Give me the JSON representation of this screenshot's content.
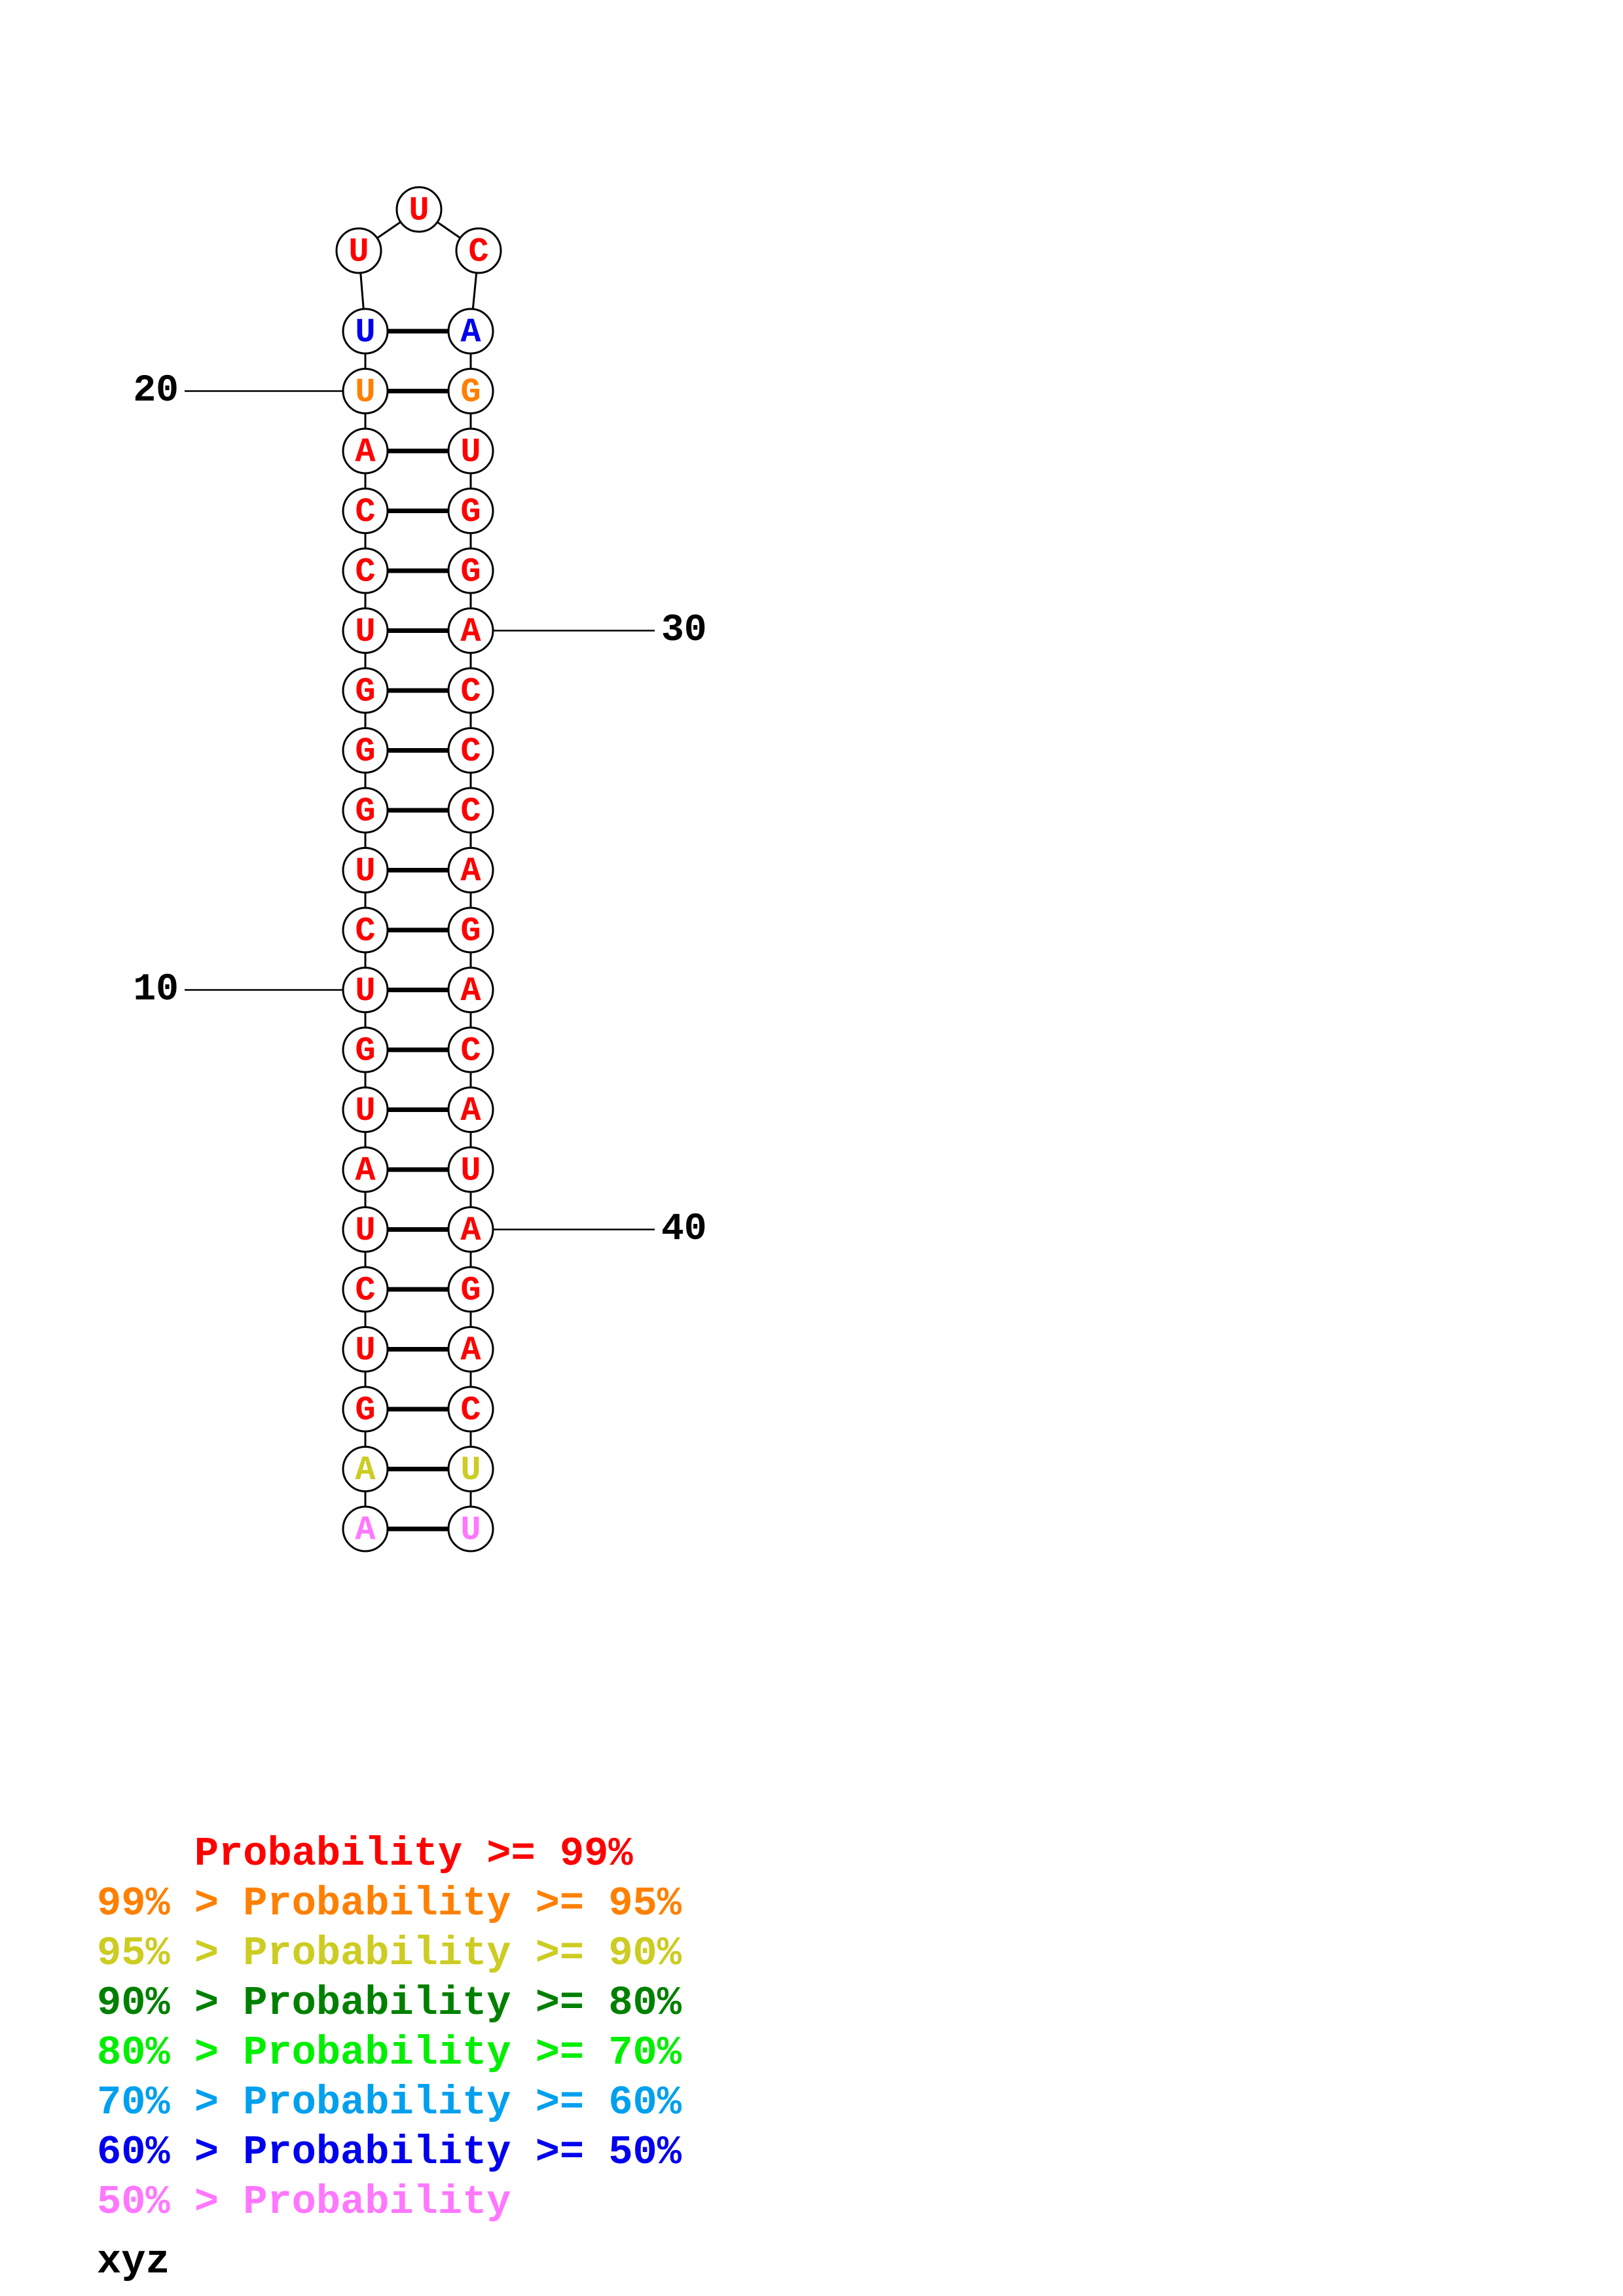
{
  "colors": {
    "p99": "#ff0000",
    "p95": "#ff8000",
    "p90": "#cccc22",
    "p80": "#008000",
    "p70": "#00ee00",
    "p60": "#00a0ee",
    "p50": "#0000ee",
    "plow": "#ff77ff"
  },
  "left_strand": [
    {
      "pos": 1,
      "base": "A",
      "color": "plow"
    },
    {
      "pos": 2,
      "base": "A",
      "color": "p90"
    },
    {
      "pos": 3,
      "base": "G",
      "color": "p99"
    },
    {
      "pos": 4,
      "base": "U",
      "color": "p99"
    },
    {
      "pos": 5,
      "base": "C",
      "color": "p99"
    },
    {
      "pos": 6,
      "base": "U",
      "color": "p99"
    },
    {
      "pos": 7,
      "base": "A",
      "color": "p99"
    },
    {
      "pos": 8,
      "base": "U",
      "color": "p99"
    },
    {
      "pos": 9,
      "base": "G",
      "color": "p99"
    },
    {
      "pos": 10,
      "base": "U",
      "color": "p99"
    },
    {
      "pos": 11,
      "base": "C",
      "color": "p99"
    },
    {
      "pos": 12,
      "base": "U",
      "color": "p99"
    },
    {
      "pos": 13,
      "base": "G",
      "color": "p99"
    },
    {
      "pos": 14,
      "base": "G",
      "color": "p99"
    },
    {
      "pos": 15,
      "base": "G",
      "color": "p99"
    },
    {
      "pos": 16,
      "base": "U",
      "color": "p99"
    },
    {
      "pos": 17,
      "base": "C",
      "color": "p99"
    },
    {
      "pos": 18,
      "base": "C",
      "color": "p99"
    },
    {
      "pos": 19,
      "base": "A",
      "color": "p99"
    },
    {
      "pos": 20,
      "base": "U",
      "color": "p95"
    },
    {
      "pos": 21,
      "base": "U",
      "color": "p50"
    }
  ],
  "loop": [
    {
      "pos": 22,
      "base": "U",
      "color": "p99"
    },
    {
      "pos": 23,
      "base": "U",
      "color": "p99"
    },
    {
      "pos": 24,
      "base": "C",
      "color": "p99"
    }
  ],
  "right_strand": [
    {
      "pos": 25,
      "base": "A",
      "color": "p50"
    },
    {
      "pos": 26,
      "base": "G",
      "color": "p95"
    },
    {
      "pos": 27,
      "base": "U",
      "color": "p99"
    },
    {
      "pos": 28,
      "base": "G",
      "color": "p99"
    },
    {
      "pos": 29,
      "base": "G",
      "color": "p99"
    },
    {
      "pos": 30,
      "base": "A",
      "color": "p99"
    },
    {
      "pos": 31,
      "base": "C",
      "color": "p99"
    },
    {
      "pos": 32,
      "base": "C",
      "color": "p99"
    },
    {
      "pos": 33,
      "base": "C",
      "color": "p99"
    },
    {
      "pos": 34,
      "base": "A",
      "color": "p99"
    },
    {
      "pos": 35,
      "base": "G",
      "color": "p99"
    },
    {
      "pos": 36,
      "base": "A",
      "color": "p99"
    },
    {
      "pos": 37,
      "base": "C",
      "color": "p99"
    },
    {
      "pos": 38,
      "base": "A",
      "color": "p99"
    },
    {
      "pos": 39,
      "base": "U",
      "color": "p99"
    },
    {
      "pos": 40,
      "base": "A",
      "color": "p99"
    },
    {
      "pos": 41,
      "base": "G",
      "color": "p99"
    },
    {
      "pos": 42,
      "base": "A",
      "color": "p99"
    },
    {
      "pos": 43,
      "base": "C",
      "color": "p99"
    },
    {
      "pos": 44,
      "base": "U",
      "color": "p90"
    },
    {
      "pos": 45,
      "base": "U",
      "color": "plow"
    }
  ],
  "position_labels": [
    {
      "label": "20",
      "pos": 20
    },
    {
      "label": "10",
      "pos": 10
    },
    {
      "label": "30",
      "pos": 30
    },
    {
      "label": "40",
      "pos": 40
    }
  ],
  "legend": [
    {
      "text": "    Probability >= 99%",
      "color": "p99"
    },
    {
      "text": "99% > Probability >= 95%",
      "color": "p95"
    },
    {
      "text": "95% > Probability >= 90%",
      "color": "p90"
    },
    {
      "text": "90% > Probability >= 80%",
      "color": "p80"
    },
    {
      "text": "80% > Probability >= 70%",
      "color": "p70"
    },
    {
      "text": "70% > Probability >= 60%",
      "color": "p60"
    },
    {
      "text": "60% > Probability >= 50%",
      "color": "p50"
    },
    {
      "text": "50% > Probability",
      "color": "plow"
    }
  ],
  "caption": "xyz"
}
